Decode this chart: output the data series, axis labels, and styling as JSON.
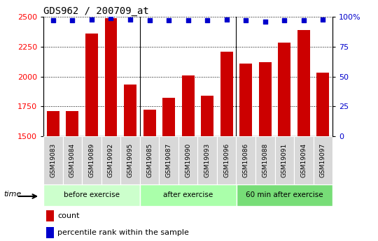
{
  "title": "GDS962 / 200709_at",
  "samples": [
    "GSM19083",
    "GSM19084",
    "GSM19089",
    "GSM19092",
    "GSM19095",
    "GSM19085",
    "GSM19087",
    "GSM19090",
    "GSM19093",
    "GSM19096",
    "GSM19086",
    "GSM19088",
    "GSM19091",
    "GSM19094",
    "GSM19097"
  ],
  "counts": [
    1710,
    1710,
    2360,
    2490,
    1930,
    1720,
    1820,
    2010,
    1840,
    2210,
    2110,
    2120,
    2285,
    2390,
    2035
  ],
  "percentiles": [
    97,
    97,
    98,
    99,
    98,
    97,
    97,
    97,
    97,
    98,
    97,
    96,
    97,
    97,
    98
  ],
  "groups": [
    {
      "label": "before exercise",
      "start": 0,
      "end": 5,
      "color": "#ccffcc"
    },
    {
      "label": "after exercise",
      "start": 5,
      "end": 10,
      "color": "#aaffaa"
    },
    {
      "label": "60 min after exercise",
      "start": 10,
      "end": 15,
      "color": "#77dd77"
    }
  ],
  "ylim_left": [
    1500,
    2500
  ],
  "ylim_right": [
    0,
    100
  ],
  "yticks_left": [
    1500,
    1750,
    2000,
    2250,
    2500
  ],
  "yticks_right": [
    0,
    25,
    50,
    75,
    100
  ],
  "bar_color": "#cc0000",
  "dot_color": "#0000cc",
  "bar_width": 0.65,
  "cell_bg": "#d8d8d8",
  "white": "#ffffff"
}
